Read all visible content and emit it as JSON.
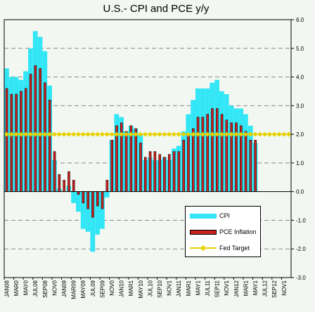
{
  "chart_data": {
    "type": "bar",
    "title": "U.S.- CPI and PCE y/y",
    "ylim": [
      -3.0,
      6.0
    ],
    "ytick_step": 1.0,
    "ytick_labels": [
      "6.0",
      "5.0",
      "4.0",
      "3.0",
      "2.0",
      "1.0",
      "0.0",
      "-1.0",
      "-2.0",
      "-3.0"
    ],
    "grid": "horizontal dashed",
    "legend_position": "bottom-right",
    "categories": [
      "JAN08",
      "FEB08",
      "MAR08",
      "APR08",
      "MAY08",
      "JUN08",
      "JUL08",
      "AUG08",
      "SEP08",
      "OCT08",
      "NOV08",
      "DEC08",
      "JAN09",
      "FEB09",
      "MAR09",
      "APR09",
      "MAY09",
      "JUN09",
      "JUL09",
      "AUG09",
      "SEP09",
      "OCT09",
      "NOV09",
      "DEC09",
      "JAN10",
      "FEB10",
      "MAR10",
      "APR10",
      "MAY10",
      "JUN10",
      "JUL10",
      "AUG10",
      "SEP10",
      "OCT10",
      "NOV10",
      "DEC10",
      "JAN11",
      "FEB11",
      "MAR11",
      "APR11",
      "MAY11",
      "JUN11",
      "JUL11",
      "AUG11",
      "SEP11",
      "OCT11",
      "NOV11",
      "DEC11",
      "JAN12",
      "FEB12",
      "MAR12",
      "APR12",
      "MAY12",
      "JUN12",
      "JUL12",
      "AUG12",
      "SEP12",
      "OCT12",
      "NOV12",
      "DEC12"
    ],
    "xtick_labels": [
      "JAN08",
      "MAR0",
      "MAY0",
      "JUL08",
      "SEP08",
      "NOV0",
      "JAN09",
      "MAR09",
      "MAY09",
      "JUL09",
      "SEP09",
      "NOV0",
      "JAN10",
      "MAR1",
      "MAY10",
      "JUL10",
      "SEP10",
      "NOV1",
      "JAN11",
      "MAR1",
      "MAY1",
      "JUL11",
      "SEP11",
      "NOV1",
      "JAN12",
      "MAR1",
      "MAY1",
      "JUL12",
      "SEP12",
      "NOV1"
    ],
    "series": [
      {
        "name": "CPI",
        "color": "#33e6f5",
        "values": [
          4.3,
          4.0,
          4.0,
          3.9,
          4.2,
          5.0,
          5.6,
          5.4,
          4.9,
          3.7,
          1.1,
          0.1,
          0.0,
          0.2,
          -0.4,
          -0.7,
          -1.3,
          -1.4,
          -2.1,
          -1.5,
          -1.3,
          -0.2,
          1.8,
          2.7,
          2.6,
          2.1,
          2.3,
          2.2,
          2.0,
          1.1,
          1.2,
          1.1,
          1.1,
          1.2,
          1.1,
          1.5,
          1.6,
          2.1,
          2.7,
          3.2,
          3.6,
          3.6,
          3.6,
          3.8,
          3.9,
          3.5,
          3.4,
          3.0,
          2.9,
          2.9,
          2.7,
          2.3,
          1.7,
          null,
          null,
          null,
          null,
          null,
          null,
          null
        ]
      },
      {
        "name": "PCE Inflation",
        "color": "#cc2020",
        "values": [
          3.6,
          3.4,
          3.4,
          3.5,
          3.6,
          4.1,
          4.4,
          4.3,
          3.8,
          3.2,
          1.4,
          0.6,
          0.4,
          0.7,
          0.4,
          -0.1,
          -0.4,
          -0.6,
          -0.9,
          -0.5,
          -0.6,
          0.4,
          1.8,
          2.3,
          2.4,
          2.1,
          2.3,
          2.2,
          1.7,
          1.2,
          1.4,
          1.4,
          1.3,
          1.2,
          1.3,
          1.4,
          1.4,
          1.8,
          2.0,
          2.2,
          2.6,
          2.6,
          2.7,
          2.9,
          2.9,
          2.7,
          2.5,
          2.4,
          2.4,
          2.3,
          2.1,
          1.8,
          1.8,
          null,
          null,
          null,
          null,
          null,
          null,
          null
        ]
      },
      {
        "name": "Fed Target",
        "color": "#e6d200",
        "values": [
          2.0,
          2.0,
          2.0,
          2.0,
          2.0,
          2.0,
          2.0,
          2.0,
          2.0,
          2.0,
          2.0,
          2.0,
          2.0,
          2.0,
          2.0,
          2.0,
          2.0,
          2.0,
          2.0,
          2.0,
          2.0,
          2.0,
          2.0,
          2.0,
          2.0,
          2.0,
          2.0,
          2.0,
          2.0,
          2.0,
          2.0,
          2.0,
          2.0,
          2.0,
          2.0,
          2.0,
          2.0,
          2.0,
          2.0,
          2.0,
          2.0,
          2.0,
          2.0,
          2.0,
          2.0,
          2.0,
          2.0,
          2.0,
          2.0,
          2.0,
          2.0,
          2.0,
          2.0,
          2.0,
          2.0,
          2.0,
          2.0,
          2.0,
          2.0,
          2.0
        ]
      }
    ]
  },
  "legend": {
    "cpi_label": "CPI",
    "pce_label": "PCE Inflation",
    "fed_label": "Fed Target"
  }
}
